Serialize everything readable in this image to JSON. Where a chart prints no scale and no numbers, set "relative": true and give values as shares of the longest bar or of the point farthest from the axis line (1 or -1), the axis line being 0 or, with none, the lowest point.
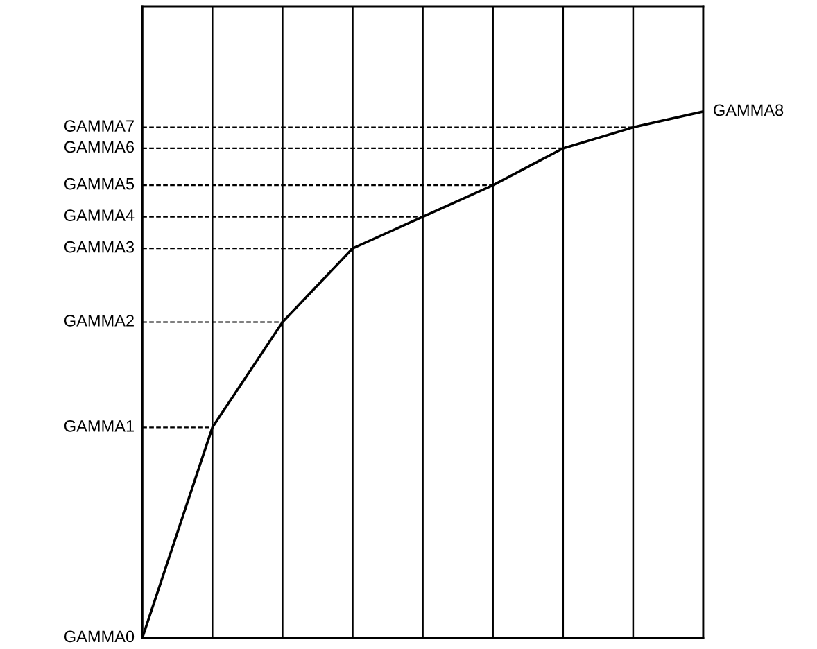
{
  "chart_data": {
    "type": "line",
    "relative": true,
    "grid": "x",
    "categories": [
      null,
      null,
      null,
      null,
      null,
      null,
      null,
      null,
      null
    ],
    "series": [
      {
        "name": "GAMMA8",
        "color": "#000000",
        "values": [
          0,
          0.4,
          0.6,
          0.74,
          0.8,
          0.86,
          0.93,
          0.97,
          1
        ]
      }
    ],
    "ref_lines": [
      {
        "axis": "y",
        "value": 0,
        "label": "GAMMA0"
      },
      {
        "axis": "y",
        "value": 0.4,
        "label": "GAMMA1",
        "line_style": "dashed",
        "color": "#000000"
      },
      {
        "axis": "y",
        "value": 0.6,
        "label": "GAMMA2",
        "line_style": "dashed",
        "color": "#000000"
      },
      {
        "axis": "y",
        "value": 0.74,
        "label": "GAMMA3",
        "line_style": "dashed",
        "color": "#000000"
      },
      {
        "axis": "y",
        "value": 0.8,
        "label": "GAMMA4",
        "line_style": "dashed",
        "color": "#000000"
      },
      {
        "axis": "y",
        "value": 0.86,
        "label": "GAMMA5",
        "line_style": "dashed",
        "color": "#000000"
      },
      {
        "axis": "y",
        "value": 0.93,
        "label": "GAMMA6",
        "line_style": "dashed",
        "color": "#000000"
      },
      {
        "axis": "y",
        "value": 0.97,
        "label": "GAMMA7",
        "line_style": "dashed",
        "color": "#000000"
      }
    ]
  }
}
